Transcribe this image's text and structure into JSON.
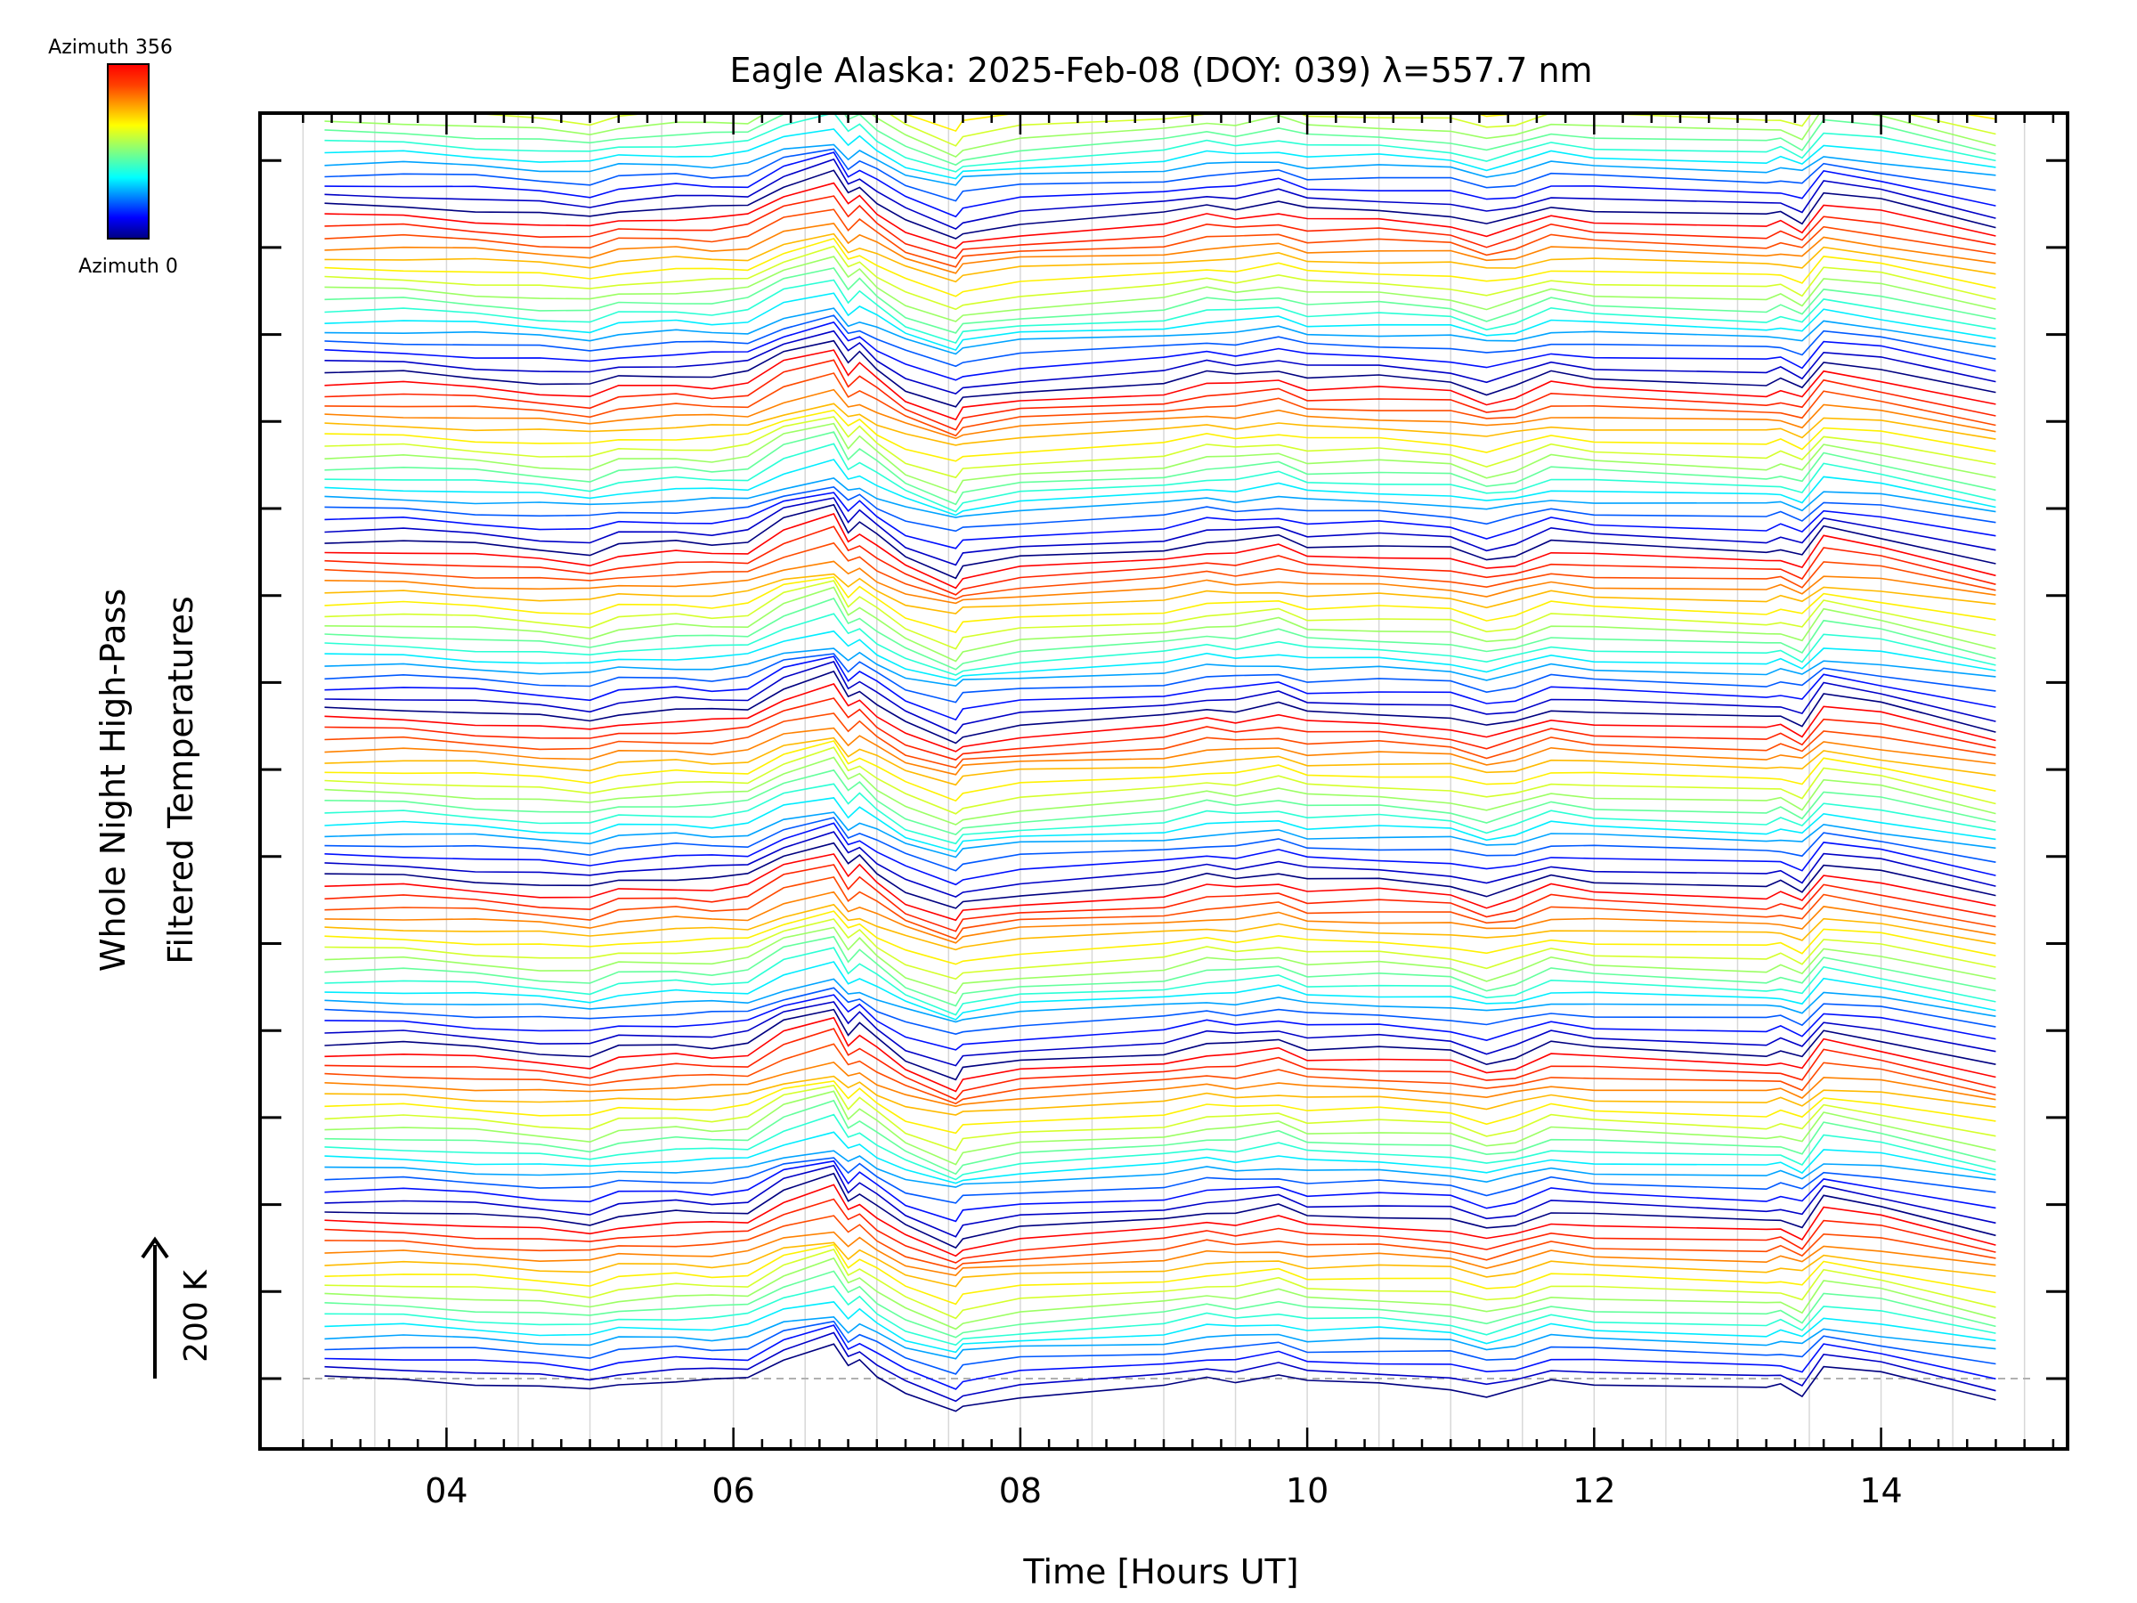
{
  "chart_data": {
    "type": "line",
    "title": "Eagle Alaska: 2025-Feb-08 (DOY: 039) λ=557.7 nm",
    "xlabel": "Time [Hours UT]",
    "ylabel_line1": "Whole Night High-Pass",
    "ylabel_line2": "Filtered Temperatures",
    "scale_label": "200 K",
    "xlim": [
      2.7,
      15.3
    ],
    "x_ticks": [
      4,
      6,
      8,
      10,
      12,
      14
    ],
    "x_tick_labels": [
      "04",
      "06",
      "08",
      "10",
      "12",
      "14"
    ],
    "grid": true,
    "legend": {
      "placement": "top-left",
      "label_max": "Azimuth 356",
      "label_min": "Azimuth 0",
      "colormap": "rainbow",
      "range": [
        0,
        356
      ]
    },
    "line_spacing_K": 12,
    "baseline_profile": {
      "x": [
        3.15,
        3.7,
        4.2,
        4.65,
        5.0,
        5.2,
        5.6,
        5.85,
        6.1,
        6.35,
        6.7,
        6.8,
        6.88,
        7.0,
        7.2,
        7.55,
        7.6,
        8.0,
        9.0,
        9.3,
        9.5,
        9.8,
        10.0,
        10.5,
        11.0,
        11.25,
        11.45,
        11.7,
        12.0,
        13.2,
        13.3,
        13.45,
        13.6,
        14.0,
        14.8
      ],
      "y": [
        0,
        0,
        -5,
        -10,
        -14,
        -5,
        -2,
        -3,
        0,
        24,
        40,
        12,
        22,
        5,
        -18,
        -40,
        -30,
        -20,
        -10,
        0,
        -2,
        5,
        -5,
        -5,
        -10,
        -22,
        -15,
        0,
        -5,
        -12,
        -8,
        -18,
        15,
        5,
        -25
      ]
    },
    "series": [
      {
        "group": 1,
        "n_lines": 16,
        "azimuth_start": 0,
        "azimuth_end": 356
      },
      {
        "group": 2,
        "n_lines": 16,
        "azimuth_start": 0,
        "azimuth_end": 356
      },
      {
        "group": 3,
        "n_lines": 16,
        "azimuth_start": 0,
        "azimuth_end": 356
      },
      {
        "group": 4,
        "n_lines": 16,
        "azimuth_start": 0,
        "azimuth_end": 356
      },
      {
        "group": 5,
        "n_lines": 16,
        "azimuth_start": 0,
        "azimuth_end": 356
      },
      {
        "group": 6,
        "n_lines": 16,
        "azimuth_start": 0,
        "azimuth_end": 356
      },
      {
        "group": 7,
        "n_lines": 16,
        "azimuth_start": 0,
        "azimuth_end": 356
      },
      {
        "group": 8,
        "n_lines": 16,
        "azimuth_start": 0,
        "azimuth_end": 356
      },
      {
        "group": 9,
        "n_lines": 16,
        "azimuth_start": 0,
        "azimuth_end": 356
      }
    ]
  }
}
